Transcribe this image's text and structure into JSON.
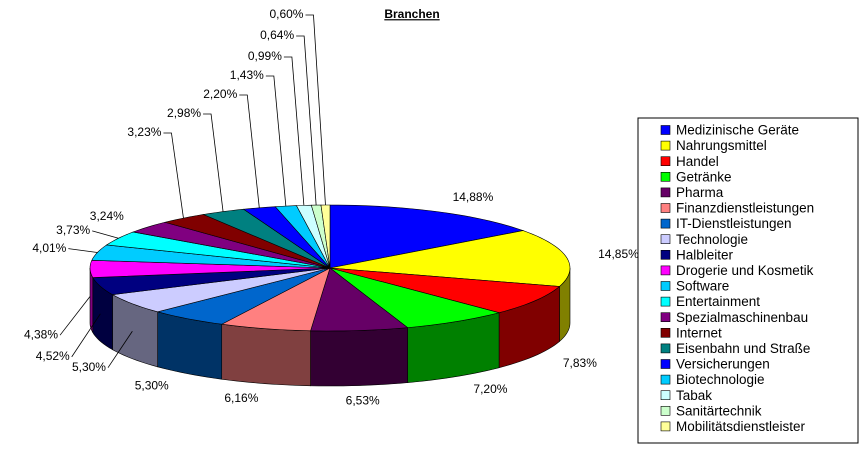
{
  "chart_data": {
    "type": "pie",
    "title": "Branchen",
    "categories": [
      "Medizinische Geräte",
      "Nahrungsmittel",
      "Handel",
      "Getränke",
      "Pharma",
      "Finanzdienstleistungen",
      "IT-Dienstleistungen",
      "Technologie",
      "Halbleiter",
      "Drogerie und Kosmetik",
      "Software",
      "Entertainment",
      "Spezialmaschinenbau",
      "Internet",
      "Eisenbahn und Straße",
      "Versicherungen",
      "Biotechnologie",
      "Tabak",
      "Sanitärtechnik",
      "Mobilitätsdienstleister"
    ],
    "values": [
      14.88,
      14.85,
      7.83,
      7.2,
      6.53,
      6.16,
      5.3,
      5.3,
      4.52,
      4.38,
      4.01,
      3.73,
      3.24,
      3.23,
      2.98,
      2.2,
      1.43,
      0.99,
      0.64,
      0.6
    ],
    "value_labels": [
      "14,88%",
      "14,85%",
      "7,83%",
      "7,20%",
      "6,53%",
      "6,16%",
      "5,30%",
      "5,30%",
      "4,52%",
      "4,38%",
      "4,01%",
      "3,73%",
      "3,24%",
      "3,23%",
      "2,98%",
      "2,20%",
      "1,43%",
      "0,99%",
      "0,64%",
      "0,60%"
    ],
    "colors": [
      "#0000ff",
      "#ffff00",
      "#ff0000",
      "#00ff00",
      "#660066",
      "#ff8080",
      "#0066cc",
      "#ccccff",
      "#000080",
      "#ff00ff",
      "#00ccff",
      "#00ffff",
      "#800080",
      "#800000",
      "#008080",
      "#0000ff",
      "#00ccff",
      "#ccffff",
      "#ccffcc",
      "#ffff99"
    ],
    "legend": "right"
  }
}
